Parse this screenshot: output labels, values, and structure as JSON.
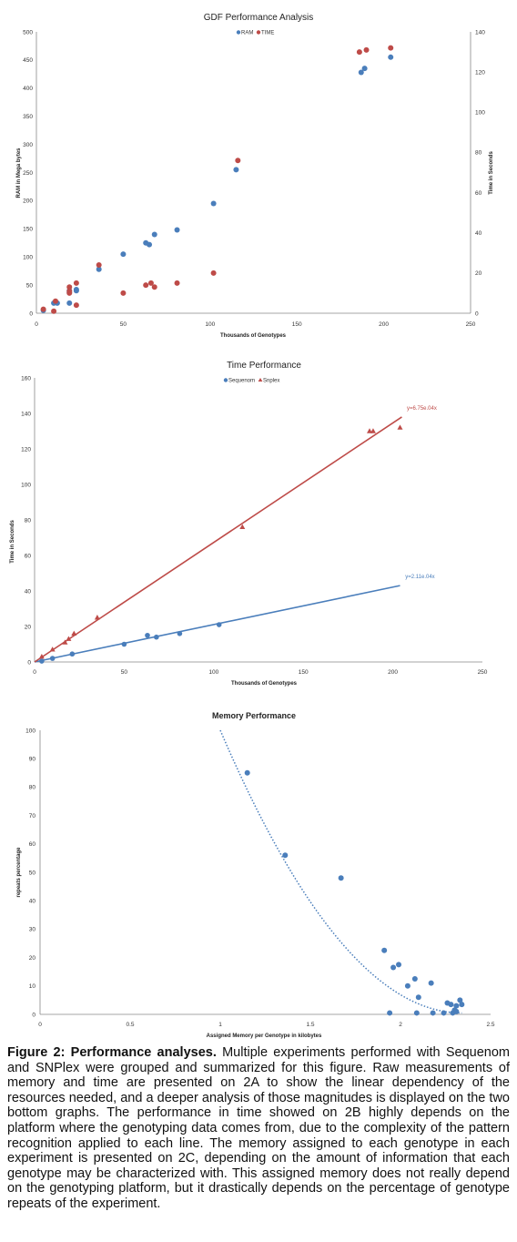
{
  "chart_data": [
    {
      "type": "scatter",
      "title": "GDF Performance Analysis",
      "xlabel": "Thousands of Genotypes",
      "ylabel": "RAM in Mega bytes",
      "y2label": "Time in Seconds",
      "xlim": [
        0,
        250
      ],
      "xticks": [
        0,
        50,
        100,
        150,
        200,
        250
      ],
      "ylim": [
        0,
        500
      ],
      "yticks": [
        0,
        50,
        100,
        150,
        200,
        250,
        300,
        350,
        400,
        450,
        500
      ],
      "y2lim": [
        0,
        140
      ],
      "y2ticks": [
        0,
        20,
        40,
        60,
        80,
        100,
        120,
        140
      ],
      "legend_position": "top",
      "series": [
        {
          "name": "RAM",
          "axis": "left",
          "color": "#4a7ebb",
          "x": [
            4,
            10,
            12,
            19,
            19,
            19,
            23,
            23,
            36,
            50,
            63,
            65,
            68,
            81,
            102,
            115,
            187,
            189,
            204
          ],
          "y": [
            5,
            18,
            18,
            18,
            37,
            40,
            40,
            42,
            78,
            105,
            125,
            122,
            140,
            148,
            195,
            255,
            428,
            435,
            455
          ]
        },
        {
          "name": "TIME",
          "axis": "right",
          "color": "#be4b48",
          "x": [
            4,
            10,
            11,
            19,
            19,
            19,
            23,
            23,
            36,
            50,
            63,
            66,
            68,
            81,
            102,
            116,
            186,
            190,
            204
          ],
          "y": [
            2,
            1,
            6,
            13,
            11,
            10,
            15,
            4,
            24,
            10,
            14,
            15,
            13,
            15,
            20,
            76,
            130,
            131,
            132
          ]
        }
      ]
    },
    {
      "type": "scatter",
      "title": "Time Performance",
      "xlabel": "Thousands of Genotypes",
      "ylabel": "Time in Seconds",
      "xlim": [
        0,
        250
      ],
      "xticks": [
        0,
        50,
        100,
        150,
        200,
        250
      ],
      "ylim": [
        0,
        160
      ],
      "yticks": [
        0,
        20,
        40,
        60,
        80,
        100,
        120,
        140,
        160
      ],
      "legend_position": "top",
      "series": [
        {
          "name": "Sequenom",
          "color": "#4a7ebb",
          "marker": "circle",
          "x": [
            4,
            10,
            21,
            50,
            63,
            68,
            81,
            103
          ],
          "y": [
            0.5,
            2,
            4.5,
            10,
            15,
            14,
            16,
            21
          ],
          "trendline": {
            "label": "y=2.11e.04x",
            "x": [
              0,
              204
            ],
            "y": [
              0,
              43
            ]
          }
        },
        {
          "name": "Snplex",
          "color": "#be4b48",
          "marker": "triangle",
          "x": [
            4,
            10,
            17,
            19,
            22,
            35,
            116,
            187,
            189,
            204
          ],
          "y": [
            3,
            7,
            11,
            13,
            16,
            25,
            76,
            130,
            130,
            132
          ],
          "trendline": {
            "label": "y=6.75e.04x",
            "x": [
              0,
              205
            ],
            "y": [
              0,
              138
            ]
          }
        }
      ]
    },
    {
      "type": "scatter",
      "title": "Memory Performance",
      "xlabel": "Assigned Memory per Genotype in kilobytes",
      "ylabel": "repeats percentage",
      "xlim": [
        0,
        2.5
      ],
      "xticks": [
        "0",
        "0.5",
        "1",
        "1.5",
        "2",
        "2.5"
      ],
      "xtick_values": [
        0,
        0.5,
        1,
        1.5,
        2,
        2.5
      ],
      "ylim": [
        0,
        100
      ],
      "yticks": [
        0,
        10,
        20,
        30,
        40,
        50,
        60,
        70,
        80,
        90,
        100
      ],
      "series": [
        {
          "color": "#4a7ebb",
          "x": [
            1.15,
            1.36,
            1.67,
            1.91,
            1.96,
            1.99,
            2.04,
            2.08,
            2.1,
            2.17,
            2.26,
            2.28,
            2.3,
            2.31,
            2.33,
            2.34,
            1.94,
            2.09,
            2.18,
            2.24,
            2.29,
            2.31
          ],
          "y": [
            85,
            56,
            48,
            22.5,
            16.5,
            17.5,
            10,
            12.5,
            6,
            11,
            4,
            3.5,
            1.5,
            3,
            5,
            3.5,
            0.5,
            0.5,
            0.5,
            0.5,
            0.5,
            1
          ],
          "trendline": {
            "type": "polynomial",
            "x_start": 1.0,
            "x_end": 2.34,
            "y_start": 100,
            "y_end": 0.5
          }
        }
      ]
    }
  ],
  "caption": {
    "label": "Figure 2: Performance analyses.",
    "text": " Multiple experiments performed with Sequenom and SNPlex were grouped and summarized for this figure. Raw measurements of memory and time are presented on 2A to show the linear dependency of the resources needed, and a deeper analysis of those magnitudes is displayed on the two bottom graphs. The performance in time showed on 2B highly depends on the platform where the genotyping data comes from, due to the complexity of the pattern recognition applied to each line. The memory assigned to each genotype in each experiment is presented on 2C, depending on the amount of information that each genotype may be characterized with. This assigned memory does not really depend on the genotyping platform, but it drastically depends on the percentage of genotype repeats of the experiment."
  }
}
